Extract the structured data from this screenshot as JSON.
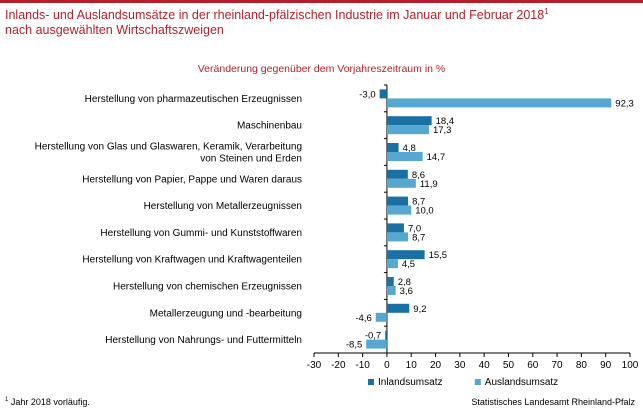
{
  "header": {
    "title_line1": "Inlands- und Auslandsumsätze in der rheinland-pfälzischen Industrie im Januar und Februar 2018",
    "title_sup": "1",
    "title_line2": "nach ausgewählten Wirtschaftszweigen",
    "accent_color": "#b51f2b"
  },
  "footer": {
    "footnote_mark": "1",
    "footnote_text": " Jahr 2018 vorläufig.",
    "source": "Statistisches Landesamt Rheinland-Pfalz"
  },
  "chart_data": {
    "type": "bar",
    "orientation": "horizontal",
    "title": "Veränderung gegenüber dem Vorjahreszeitraum in %",
    "categories": [
      [
        "Herstellung von pharmazeutischen Erzeugnissen"
      ],
      [
        "Maschinenbau"
      ],
      [
        "Herstellung von Glas und Glaswaren, Keramik, Verarbeitung",
        "von Steinen und Erden"
      ],
      [
        "Herstellung von Papier, Pappe und Waren daraus"
      ],
      [
        "Herstellung von Metallerzeugnissen"
      ],
      [
        "Herstellung von Gummi- und Kunststoffwaren"
      ],
      [
        "Herstellung von Kraftwagen und Kraftwagenteilen"
      ],
      [
        "Herstellung von chemischen Erzeugnissen"
      ],
      [
        "Metallerzeugung und -bearbeitung"
      ],
      [
        "Herstellung von Nahrungs- und Futtermitteln"
      ]
    ],
    "series": [
      {
        "name": "Inlandsumsatz",
        "color": "#1a6fa3",
        "values": [
          -3.0,
          18.4,
          4.8,
          8.6,
          8.7,
          7.0,
          15.5,
          2.8,
          9.2,
          -0.7
        ],
        "labels": [
          "-3,0",
          "18,4",
          "4,8",
          "8,6",
          "8,7",
          "7,0",
          "15,5",
          "2,8",
          "9,2",
          "-0,7"
        ]
      },
      {
        "name": "Auslandsumsatz",
        "color": "#56a8d1",
        "values": [
          92.3,
          17.3,
          14.7,
          11.9,
          10.0,
          8.7,
          4.5,
          3.6,
          -4.6,
          -8.5
        ],
        "labels": [
          "92,3",
          "17,3",
          "14,7",
          "11,9",
          "10,0",
          "8,7",
          "4,5",
          "3,6",
          "-4,6",
          "-8,5"
        ]
      }
    ],
    "xlim": [
      -30,
      100
    ],
    "xticks": [
      -30,
      -20,
      -10,
      0,
      10,
      20,
      30,
      40,
      50,
      60,
      70,
      80,
      90,
      100
    ],
    "grid": false,
    "legend_position": "bottom"
  }
}
